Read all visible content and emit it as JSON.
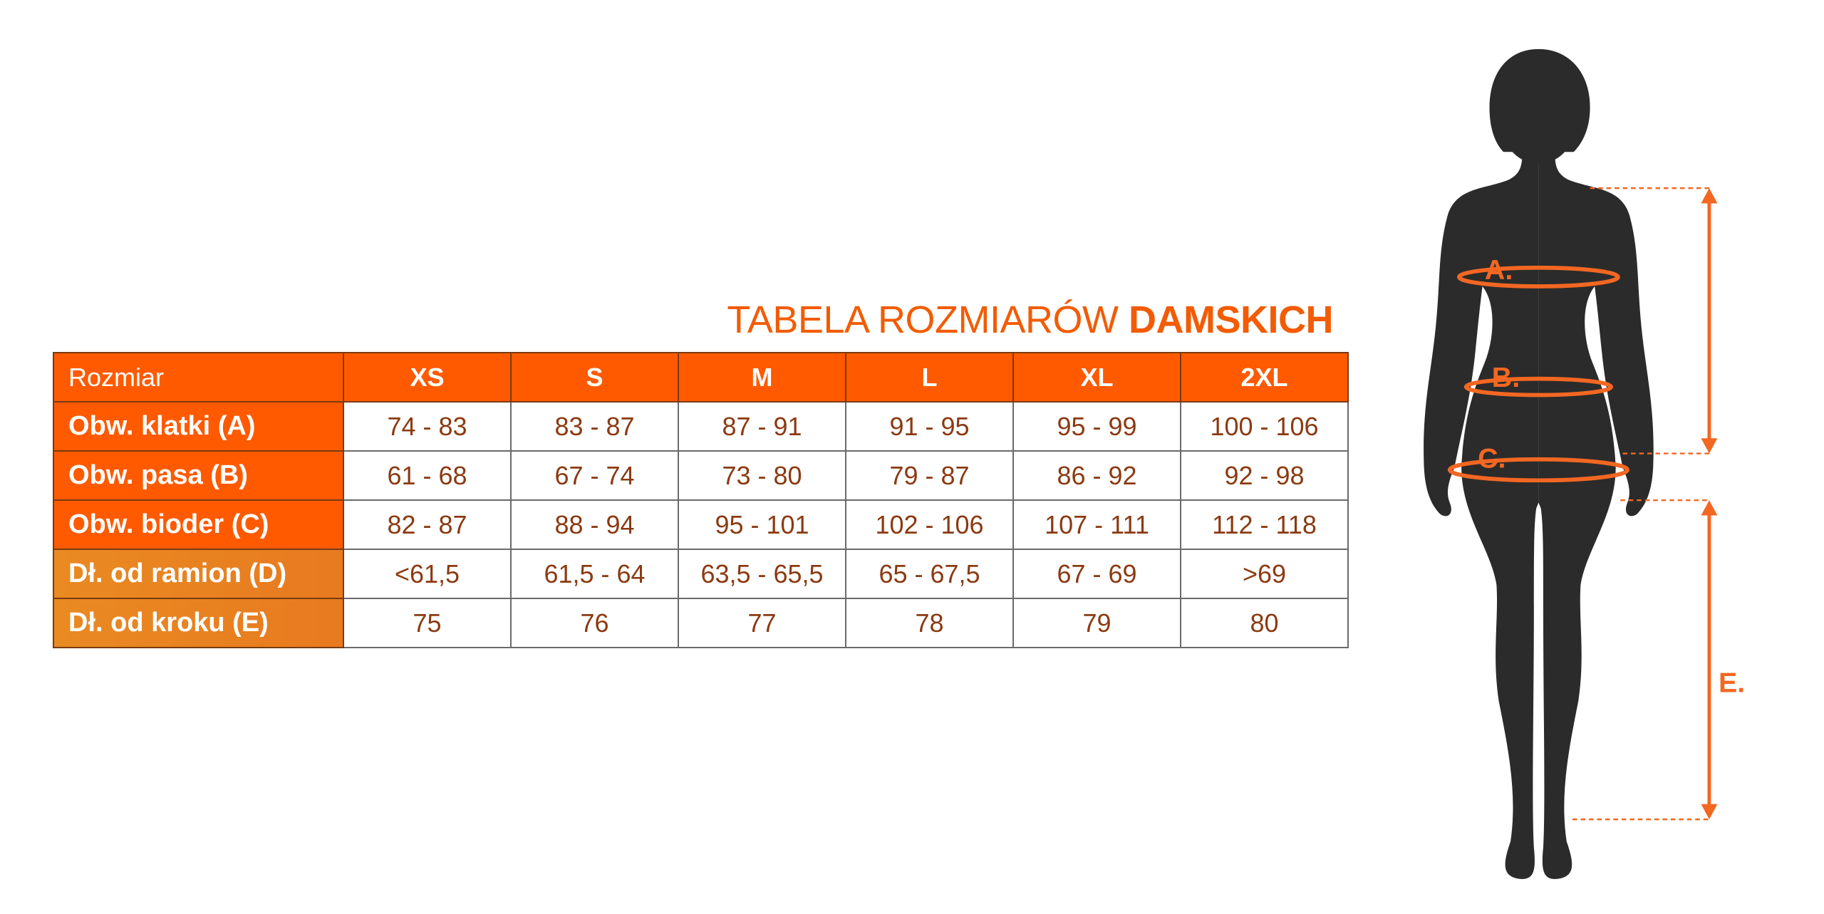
{
  "title": {
    "regular": "TABELA ROZMIARÓW",
    "bold": "DAMSKICH"
  },
  "table": {
    "header_label": "Rozmiar",
    "sizes": [
      "XS",
      "S",
      "M",
      "L",
      "XL",
      "2XL"
    ],
    "rows": [
      {
        "label": "Obw. klatki (A)",
        "values": [
          "74 - 83",
          "83 - 87",
          "87 - 91",
          "91 - 95",
          "95 - 99",
          "100 - 106"
        ]
      },
      {
        "label": "Obw. pasa (B)",
        "values": [
          "61 - 68",
          "67 - 74",
          "73 - 80",
          "79 - 87",
          "86 - 92",
          "92 - 98"
        ]
      },
      {
        "label": "Obw. bioder (C)",
        "values": [
          "82 - 87",
          "88 - 94",
          "95 - 101",
          "102 - 106",
          "107 - 111",
          "112 - 118"
        ]
      },
      {
        "label": "Dł. od ramion (D)",
        "values": [
          "<61,5",
          "61,5 - 64",
          "63,5 - 65,5",
          "65 - 67,5",
          "67 - 69",
          ">69"
        ]
      },
      {
        "label": "Dł. od kroku (E)",
        "values": [
          "75",
          "76",
          "77",
          "78",
          "79",
          "80"
        ]
      }
    ]
  },
  "figure": {
    "labels": {
      "a": "A.",
      "b": "B.",
      "c": "C.",
      "e": "E."
    }
  },
  "colors": {
    "accent": "#FF5A00",
    "accent_light": "#E8801F",
    "silhouette": "#2B2B2B",
    "cell_text": "#8B3A12"
  }
}
